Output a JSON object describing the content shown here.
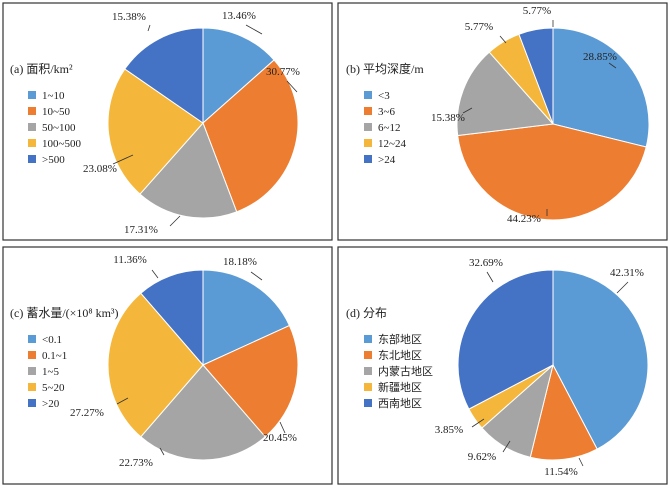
{
  "chart_data": [
    {
      "type": "pie",
      "title": "(a) 面积/km²",
      "legend_position": "left",
      "categories": [
        "1~10",
        "10~50",
        "50~100",
        "100~500",
        ">500"
      ],
      "values": [
        13.46,
        30.77,
        17.31,
        23.08,
        15.38
      ],
      "labels": [
        "13.46%",
        "30.77%",
        "17.31%",
        "23.08%",
        "15.38%"
      ]
    },
    {
      "type": "pie",
      "title": "(b) 平均深度/m",
      "legend_position": "left",
      "categories": [
        "<3",
        "3~6",
        "6~12",
        "12~24",
        ">24"
      ],
      "values": [
        28.85,
        44.23,
        15.38,
        5.77,
        5.77
      ],
      "labels": [
        "28.85%",
        "44.23%",
        "15.38%",
        "5.77%",
        "5.77%"
      ]
    },
    {
      "type": "pie",
      "title": "(c) 蓄水量/(×10⁸ km³)",
      "legend_position": "left",
      "categories": [
        "<0.1",
        "0.1~1",
        "1~5",
        "5~20",
        ">20"
      ],
      "values": [
        18.18,
        20.45,
        22.73,
        27.27,
        11.36
      ],
      "labels": [
        "18.18%",
        "20.45%",
        "22.73%",
        "27.27%",
        "11.36%"
      ]
    },
    {
      "type": "pie",
      "title": "(d) 分布",
      "legend_position": "left",
      "categories": [
        "东部地区",
        "东北地区",
        "内蒙古地区",
        "新疆地区",
        "西南地区"
      ],
      "values": [
        42.31,
        11.54,
        9.62,
        3.85,
        32.69
      ],
      "labels": [
        "42.31%",
        "11.54%",
        "9.62%",
        "3.85%",
        "32.69%"
      ]
    }
  ],
  "colors": [
    "#5b9bd5",
    "#ed7d31",
    "#a5a5a5",
    "#f4b73c",
    "#4472c4"
  ]
}
